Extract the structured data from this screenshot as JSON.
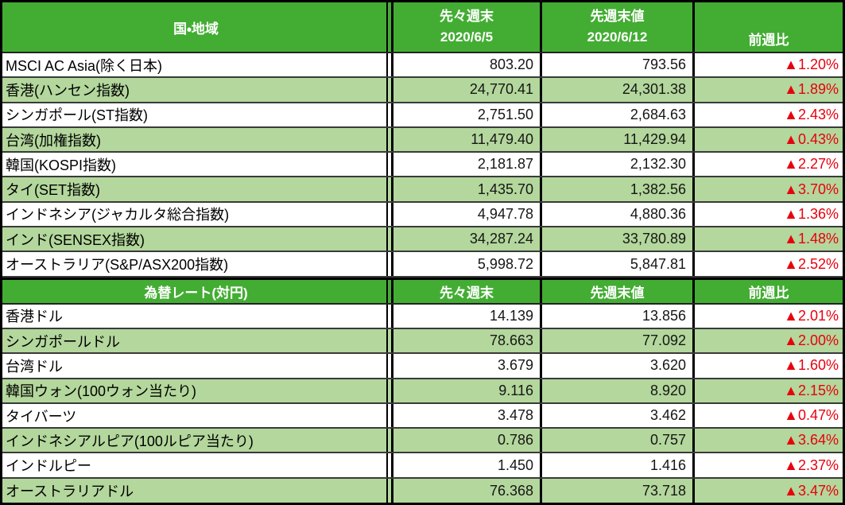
{
  "colors": {
    "header_green": "#43ad33",
    "band_green": "#b3d79c",
    "row_white": "#ffffff",
    "negative_red": "#e8000d",
    "grid_black": "#000000",
    "cursor_blue": "#4576c9"
  },
  "indices_section": {
    "header": {
      "region": "国・地域",
      "prev_label": "先々週末",
      "prev_date": "2020/6/5",
      "last_label": "先週末値",
      "last_date": "2020/6/12",
      "change_label": "前週比"
    },
    "rows": [
      {
        "label": "MSCI AC Asia(除く日本)",
        "prev": "803.20",
        "last": "793.56",
        "change": "▲1.20%"
      },
      {
        "label": "香港(ハンセン指数)",
        "prev": "24,770.41",
        "last": "24,301.38",
        "change": "▲1.89%"
      },
      {
        "label": "シンガポール(ST指数)",
        "prev": "2,751.50",
        "last": "2,684.63",
        "change": "▲2.43%"
      },
      {
        "label": "台湾(加権指数)",
        "prev": "11,479.40",
        "last": "11,429.94",
        "change": "▲0.43%"
      },
      {
        "label": "韓国(KOSPI指数)",
        "prev": "2,181.87",
        "last": "2,132.30",
        "change": "▲2.27%"
      },
      {
        "label": "タイ(SET指数)",
        "prev": "1,435.70",
        "last": "1,382.56",
        "change": "▲3.70%"
      },
      {
        "label": "インドネシア(ジャカルタ総合指数)",
        "prev": "4,947.78",
        "last": "4,880.36",
        "change": "▲1.36%"
      },
      {
        "label": "インド(SENSEX指数)",
        "prev": "34,287.24",
        "last": "33,780.89",
        "change": "▲1.48%"
      },
      {
        "label": "オーストラリア(S&P/ASX200指数)",
        "prev": "5,998.72",
        "last": "5,847.81",
        "change": "▲2.52%"
      }
    ]
  },
  "fx_section": {
    "header": {
      "title": "為替レート(対円)",
      "prev_label": "先々週末",
      "last_label": "先週末値",
      "change_label": "前週比"
    },
    "rows": [
      {
        "label": "香港ドル",
        "prev": "14.139",
        "last": "13.856",
        "change": "▲2.01%"
      },
      {
        "label": "シンガポールドル",
        "prev": "78.663",
        "last": "77.092",
        "change": "▲2.00%"
      },
      {
        "label": "台湾ドル",
        "prev": "3.679",
        "last": "3.620",
        "change": "▲1.60%"
      },
      {
        "label": "韓国ウォン(100ウォン当たり)",
        "prev": "9.116",
        "last": "8.920",
        "change": "▲2.15%"
      },
      {
        "label": "タイバーツ",
        "prev": "3.478",
        "last": "3.462",
        "change": "▲0.47%"
      },
      {
        "label": "インドネシアルピア(100ルピア当たり)",
        "prev": "0.786",
        "last": "0.757",
        "change": "▲3.64%"
      },
      {
        "label": "インドルピー",
        "prev": "1.450",
        "last": "1.416",
        "change": "▲2.37%"
      },
      {
        "label": "オーストラリアドル",
        "prev": "76.368",
        "last": "73.718",
        "change": "▲3.47%"
      }
    ]
  }
}
